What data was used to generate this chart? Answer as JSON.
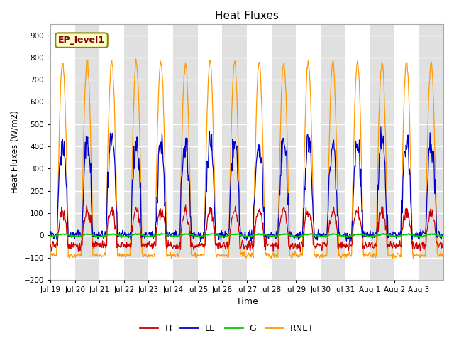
{
  "title": "Heat Fluxes",
  "xlabel": "Time",
  "ylabel": "Heat Fluxes (W/m2)",
  "ylim": [
    -200,
    950
  ],
  "yticks": [
    -200,
    -100,
    0,
    100,
    200,
    300,
    400,
    500,
    600,
    700,
    800,
    900
  ],
  "colors": {
    "H": "#cc0000",
    "LE": "#0000cc",
    "G": "#00cc00",
    "RNET": "#ff9900"
  },
  "legend_label": "EP_level1",
  "legend_box_color": "#ffffcc",
  "legend_box_edge": "#888800",
  "fig_bg_color": "#ffffff",
  "plot_bg_color": "#ffffff",
  "band_color": "#e0e0e0",
  "grid_color": "#ffffff",
  "x_tick_labels": [
    "Jul 19",
    "Jul 20",
    "Jul 21",
    "Jul 22",
    "Jul 23",
    "Jul 24",
    "Jul 25",
    "Jul 26",
    "Jul 27",
    "Jul 28",
    "Jul 29",
    "Jul 30",
    "Jul 31",
    "Aug 1",
    "Aug 2",
    "Aug 3"
  ],
  "n_days": 16,
  "n_per_day": 48,
  "figsize": [
    6.4,
    4.8
  ],
  "dpi": 100,
  "seed": 42
}
